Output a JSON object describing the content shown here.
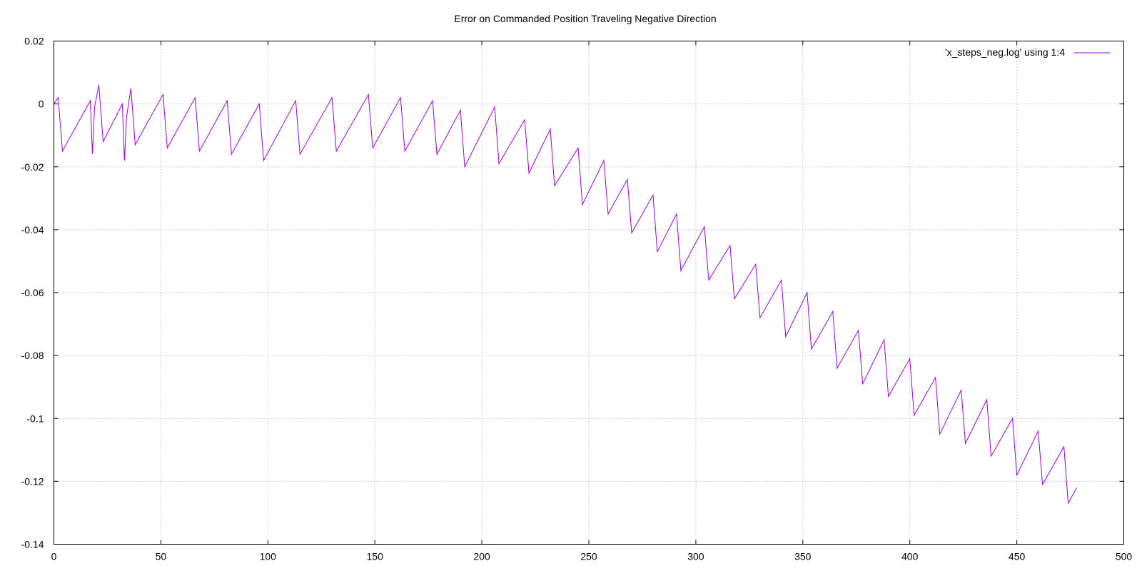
{
  "chart_data": {
    "type": "line",
    "title": "Error on Commanded Position Traveling Negative Direction",
    "xlabel": "",
    "ylabel": "",
    "xlim": [
      0,
      500
    ],
    "ylim": [
      -0.14,
      0.02
    ],
    "x_ticks": [
      0,
      50,
      100,
      150,
      200,
      250,
      300,
      350,
      400,
      450,
      500
    ],
    "x_tick_labels": [
      "0",
      "50",
      "100",
      "150",
      "200",
      "250",
      "300",
      "350",
      "400",
      "450",
      "500"
    ],
    "y_ticks": [
      0.02,
      0,
      -0.02,
      -0.04,
      -0.06,
      -0.08,
      -0.1,
      -0.12,
      -0.14
    ],
    "y_tick_labels": [
      "0.02",
      "0",
      "-0.02",
      "-0.04",
      "-0.06",
      "-0.08",
      "-0.1",
      "-0.12",
      "-0.14"
    ],
    "grid": true,
    "legend_position": "top-right",
    "series": [
      {
        "name": "'x_steps_neg.log' using 1:4",
        "color": "#9400d3",
        "x": [
          0,
          2,
          4,
          17,
          18,
          19,
          21,
          23,
          32,
          33,
          34,
          36,
          38,
          51,
          53,
          66,
          68,
          81,
          83,
          96,
          98,
          113,
          115,
          130,
          132,
          147,
          149,
          162,
          164,
          177,
          179,
          190,
          192,
          206,
          208,
          220,
          222,
          232,
          234,
          245,
          247,
          257,
          259,
          268,
          270,
          280,
          282,
          291,
          293,
          304,
          306,
          316,
          318,
          328,
          330,
          340,
          342,
          352,
          354,
          364,
          366,
          376,
          378,
          388,
          390,
          400,
          402,
          412,
          414,
          424,
          426,
          436,
          438,
          448,
          450,
          460,
          462,
          472,
          474,
          478
        ],
        "y": [
          0,
          0.002,
          -0.015,
          0.001,
          -0.016,
          -0.001,
          0.006,
          -0.012,
          0,
          -0.018,
          -0.004,
          0.005,
          -0.013,
          0.003,
          -0.014,
          0.002,
          -0.015,
          0.001,
          -0.016,
          0,
          -0.018,
          0.001,
          -0.016,
          0.002,
          -0.015,
          0.003,
          -0.014,
          0.002,
          -0.015,
          0.001,
          -0.016,
          -0.002,
          -0.02,
          -0.001,
          -0.019,
          -0.005,
          -0.022,
          -0.008,
          -0.026,
          -0.014,
          -0.032,
          -0.018,
          -0.035,
          -0.024,
          -0.041,
          -0.029,
          -0.047,
          -0.035,
          -0.053,
          -0.039,
          -0.056,
          -0.045,
          -0.062,
          -0.051,
          -0.068,
          -0.056,
          -0.074,
          -0.06,
          -0.078,
          -0.066,
          -0.084,
          -0.072,
          -0.089,
          -0.075,
          -0.093,
          -0.081,
          -0.099,
          -0.087,
          -0.105,
          -0.091,
          -0.108,
          -0.094,
          -0.112,
          -0.1,
          -0.118,
          -0.104,
          -0.121,
          -0.109,
          -0.127,
          -0.122
        ]
      }
    ]
  }
}
